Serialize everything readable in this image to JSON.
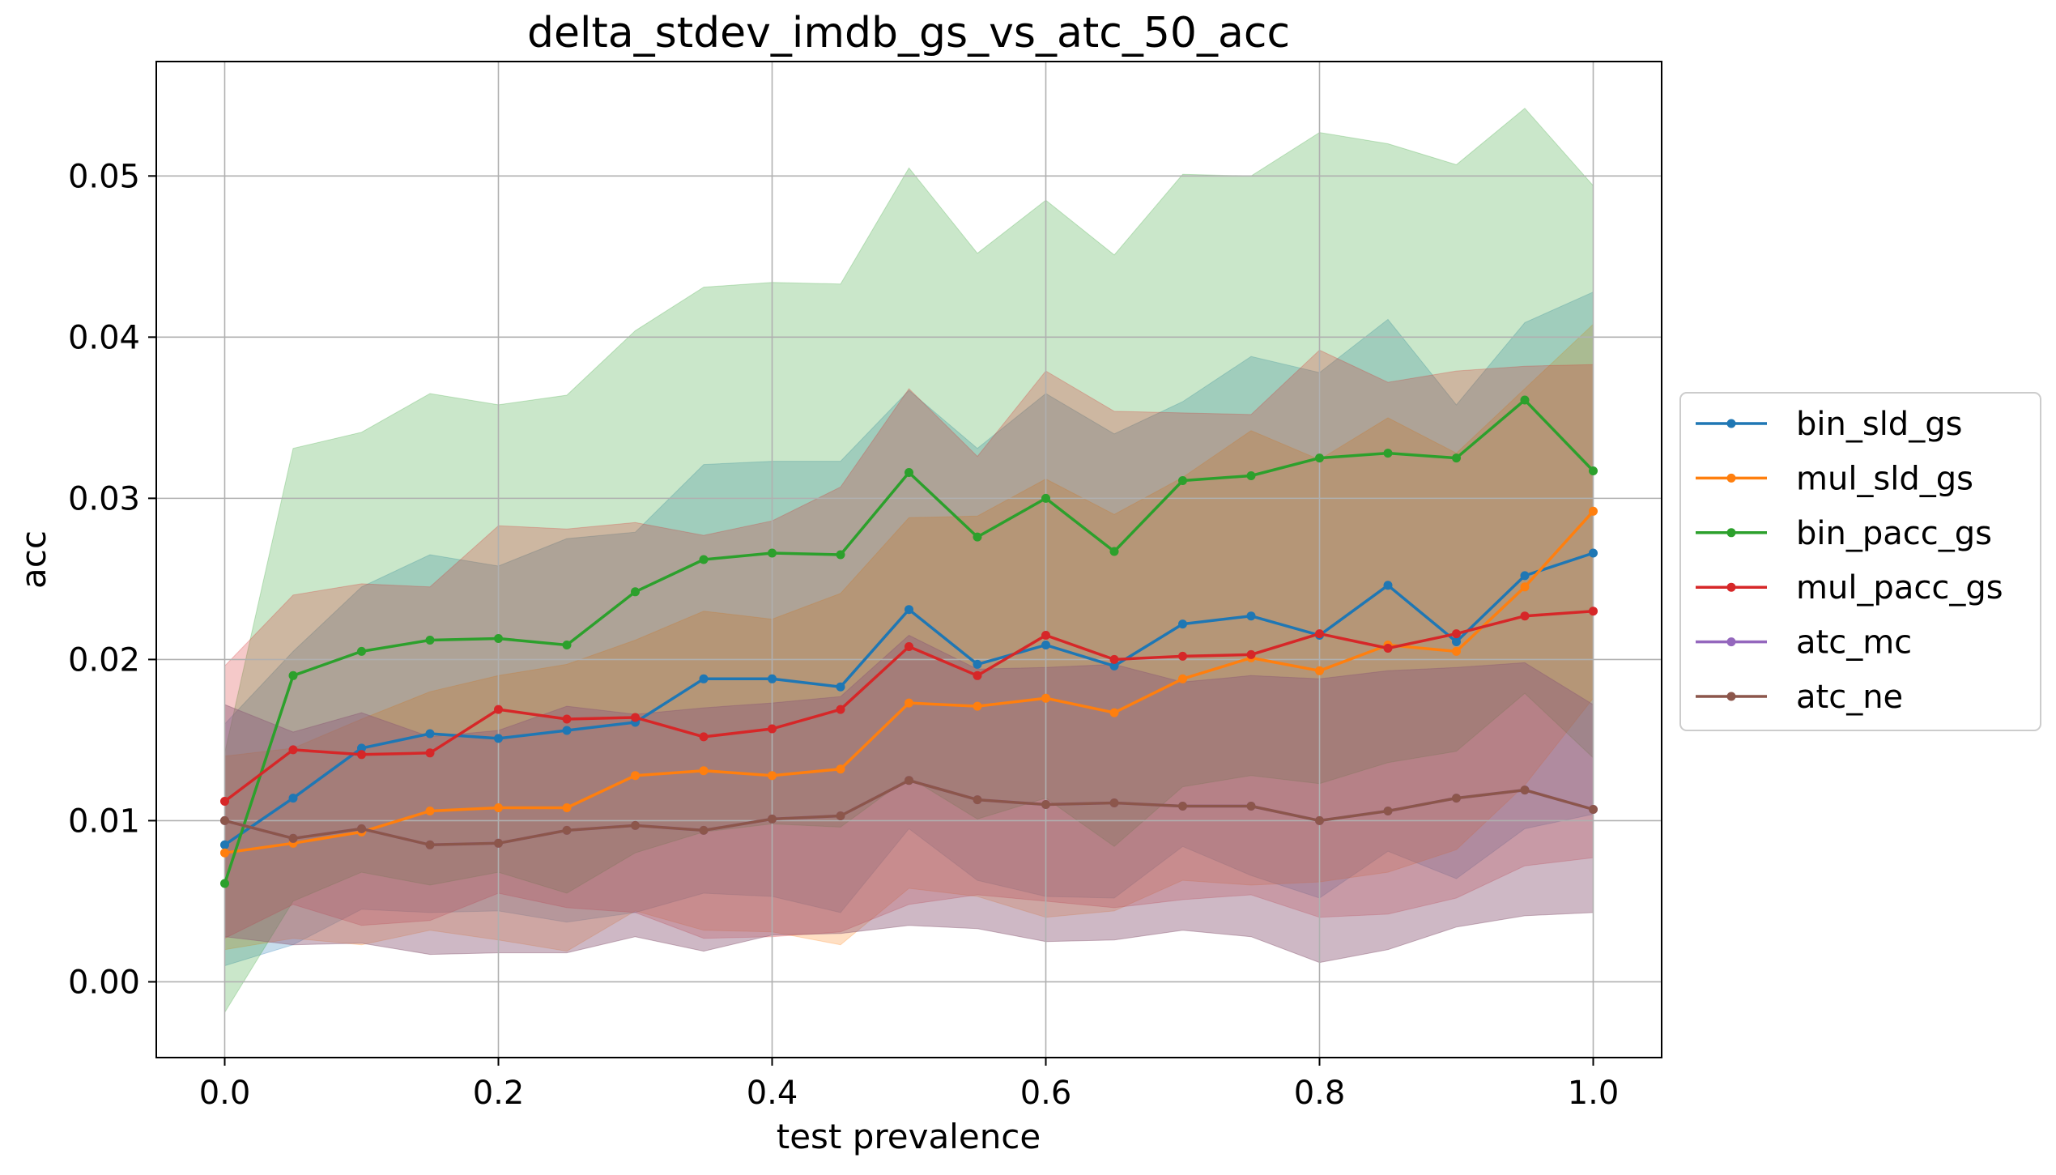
{
  "chart_data": {
    "type": "line",
    "title": "delta_stdev_imdb_gs_vs_atc_50_acc",
    "xlabel": "test prevalence",
    "ylabel": "acc",
    "xlim": [
      -0.05,
      1.05
    ],
    "ylim": [
      -0.0047,
      0.0571
    ],
    "x_ticks": [
      0.0,
      0.2,
      0.4,
      0.6,
      0.8,
      1.0
    ],
    "x_tick_labels": [
      "0.0",
      "0.2",
      "0.4",
      "0.6",
      "0.8",
      "1.0"
    ],
    "y_ticks": [
      0.0,
      0.01,
      0.02,
      0.03,
      0.04,
      0.05
    ],
    "y_tick_labels": [
      "0.00",
      "0.01",
      "0.02",
      "0.03",
      "0.04",
      "0.05"
    ],
    "grid": true,
    "legend_position": "right-outside",
    "x": [
      0.0,
      0.05,
      0.1,
      0.15,
      0.2,
      0.25,
      0.3,
      0.35,
      0.4,
      0.45,
      0.5,
      0.55,
      0.6,
      0.65,
      0.7,
      0.75,
      0.8,
      0.85,
      0.9,
      0.95,
      1.0
    ],
    "series": [
      {
        "name": "bin_sld_gs",
        "color": "#1f77b4",
        "values": [
          0.0085,
          0.0114,
          0.0145,
          0.0154,
          0.0151,
          0.0156,
          0.0161,
          0.0188,
          0.0188,
          0.0183,
          0.0231,
          0.0197,
          0.0209,
          0.0196,
          0.0222,
          0.0227,
          0.0215,
          0.0246,
          0.0211,
          0.0252,
          0.0266
        ],
        "band_upper": [
          0.016,
          0.0205,
          0.0245,
          0.0265,
          0.0258,
          0.0275,
          0.0279,
          0.0321,
          0.0323,
          0.0323,
          0.0367,
          0.0331,
          0.0365,
          0.034,
          0.036,
          0.0388,
          0.0378,
          0.0411,
          0.0358,
          0.0409,
          0.0428
        ],
        "band_lower": [
          0.001,
          0.0023,
          0.0045,
          0.0043,
          0.0044,
          0.0037,
          0.0043,
          0.0055,
          0.0053,
          0.0043,
          0.0095,
          0.0063,
          0.0053,
          0.0052,
          0.0084,
          0.0066,
          0.0052,
          0.0081,
          0.0064,
          0.0095,
          0.0104
        ]
      },
      {
        "name": "mul_sld_gs",
        "color": "#ff7f0e",
        "values": [
          0.008,
          0.0086,
          0.0093,
          0.0106,
          0.0108,
          0.0108,
          0.0128,
          0.0131,
          0.0128,
          0.0132,
          0.0173,
          0.0171,
          0.0176,
          0.0167,
          0.0188,
          0.0201,
          0.0193,
          0.0209,
          0.0205,
          0.0245,
          0.0292
        ],
        "band_upper": [
          0.014,
          0.0145,
          0.0163,
          0.018,
          0.019,
          0.0197,
          0.0212,
          0.023,
          0.0225,
          0.0241,
          0.0288,
          0.0289,
          0.0312,
          0.029,
          0.0313,
          0.0342,
          0.0324,
          0.035,
          0.0328,
          0.0368,
          0.0408
        ],
        "band_lower": [
          0.002,
          0.0027,
          0.0023,
          0.0032,
          0.0026,
          0.0019,
          0.0044,
          0.0032,
          0.0031,
          0.0023,
          0.0058,
          0.0053,
          0.004,
          0.0044,
          0.0063,
          0.006,
          0.0062,
          0.0068,
          0.0082,
          0.0122,
          0.0176
        ]
      },
      {
        "name": "bin_pacc_gs",
        "color": "#2ca02c",
        "values": [
          0.0061,
          0.019,
          0.0205,
          0.0212,
          0.0213,
          0.0209,
          0.0242,
          0.0262,
          0.0266,
          0.0265,
          0.0316,
          0.0276,
          0.03,
          0.0267,
          0.0311,
          0.0314,
          0.0325,
          0.0328,
          0.0325,
          0.0361,
          0.0317
        ],
        "band_upper": [
          0.0142,
          0.0331,
          0.0341,
          0.0365,
          0.0358,
          0.0364,
          0.0404,
          0.0431,
          0.0434,
          0.0433,
          0.0505,
          0.0452,
          0.0485,
          0.0451,
          0.0501,
          0.05,
          0.0527,
          0.052,
          0.0507,
          0.0542,
          0.0494
        ],
        "band_lower": [
          -0.0019,
          0.005,
          0.0068,
          0.006,
          0.0068,
          0.0055,
          0.008,
          0.0093,
          0.0098,
          0.0096,
          0.0127,
          0.0101,
          0.0114,
          0.0084,
          0.0121,
          0.0128,
          0.0123,
          0.0136,
          0.0143,
          0.0179,
          0.0139
        ]
      },
      {
        "name": "mul_pacc_gs",
        "color": "#d62728",
        "values": [
          0.0112,
          0.0144,
          0.0141,
          0.0142,
          0.0169,
          0.0163,
          0.0164,
          0.0152,
          0.0157,
          0.0169,
          0.0208,
          0.019,
          0.0215,
          0.02,
          0.0202,
          0.0203,
          0.0216,
          0.0207,
          0.0216,
          0.0227,
          0.023
        ],
        "band_upper": [
          0.0196,
          0.024,
          0.0247,
          0.0245,
          0.0283,
          0.0281,
          0.0285,
          0.0277,
          0.0286,
          0.0307,
          0.0368,
          0.0326,
          0.0379,
          0.0354,
          0.0353,
          0.0352,
          0.0392,
          0.0372,
          0.0379,
          0.0382,
          0.0383
        ],
        "band_lower": [
          0.0027,
          0.0048,
          0.0035,
          0.0038,
          0.0055,
          0.0046,
          0.0043,
          0.0027,
          0.0028,
          0.0031,
          0.0048,
          0.0054,
          0.005,
          0.0046,
          0.0051,
          0.0054,
          0.004,
          0.0042,
          0.0052,
          0.0072,
          0.0077
        ]
      },
      {
        "name": "atc_mc",
        "color": "#9467bd",
        "values": [
          0.01,
          0.0089,
          0.0095,
          0.0085,
          0.0086,
          0.0094,
          0.0097,
          0.0094,
          0.0101,
          0.0103,
          0.0125,
          0.0113,
          0.011,
          0.0111,
          0.0109,
          0.0109,
          0.01,
          0.0106,
          0.0114,
          0.0119,
          0.0107
        ],
        "band_upper": [
          0.0172,
          0.0155,
          0.0167,
          0.0152,
          0.0156,
          0.0171,
          0.0166,
          0.017,
          0.0173,
          0.0177,
          0.0215,
          0.0194,
          0.0195,
          0.0197,
          0.0186,
          0.019,
          0.0188,
          0.0193,
          0.0195,
          0.0198,
          0.0172
        ],
        "band_lower": [
          0.0028,
          0.0023,
          0.0024,
          0.0017,
          0.0018,
          0.0018,
          0.0028,
          0.0019,
          0.0029,
          0.003,
          0.0035,
          0.0033,
          0.0025,
          0.0026,
          0.0032,
          0.0028,
          0.0012,
          0.002,
          0.0034,
          0.0041,
          0.0043
        ]
      },
      {
        "name": "atc_ne",
        "color": "#8c564b",
        "values": [
          0.01,
          0.0089,
          0.0095,
          0.0085,
          0.0086,
          0.0094,
          0.0097,
          0.0094,
          0.0101,
          0.0103,
          0.0125,
          0.0113,
          0.011,
          0.0111,
          0.0109,
          0.0109,
          0.01,
          0.0106,
          0.0114,
          0.0119,
          0.0107
        ],
        "band_upper": [
          0.0172,
          0.0155,
          0.0167,
          0.0152,
          0.0156,
          0.0171,
          0.0166,
          0.017,
          0.0173,
          0.0177,
          0.0215,
          0.0194,
          0.0195,
          0.0197,
          0.0186,
          0.019,
          0.0188,
          0.0193,
          0.0195,
          0.0198,
          0.0172
        ],
        "band_lower": [
          0.0028,
          0.0023,
          0.0024,
          0.0017,
          0.0018,
          0.0018,
          0.0028,
          0.0019,
          0.0029,
          0.003,
          0.0035,
          0.0033,
          0.0025,
          0.0026,
          0.0032,
          0.0028,
          0.0012,
          0.002,
          0.0034,
          0.0041,
          0.0043
        ]
      }
    ]
  }
}
